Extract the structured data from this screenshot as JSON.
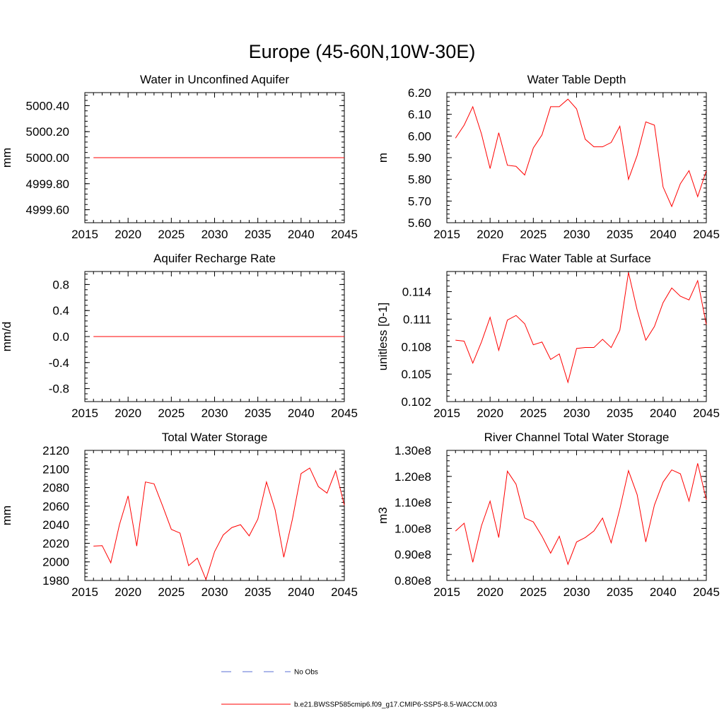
{
  "figure_title": "Europe (45-60N,10W-30E)",
  "colors": {
    "model": "#ff0000",
    "obs": "#5a6fd6",
    "axis": "#000000"
  },
  "legend": {
    "obs_label": "No Obs",
    "model_label": "b.e21.BWSSP585cmip6.f09_g17.CMIP6-SSP5-8.5-WACCM.003"
  },
  "chart_data": [
    {
      "type": "line",
      "title": "Water in Unconfined Aquifer",
      "ylabel": "mm",
      "xlim": [
        2015,
        2045
      ],
      "ylim": [
        4999.5,
        5000.5
      ],
      "xticks": [
        2015,
        2020,
        2025,
        2030,
        2035,
        2040,
        2045
      ],
      "yticks": [
        4999.6,
        4999.8,
        5000.0,
        5000.2,
        5000.4
      ],
      "ytick_labels": [
        "4999.60",
        "4999.80",
        "5000.00",
        "5000.20",
        "5000.40"
      ],
      "x": [
        2016,
        2017,
        2018,
        2019,
        2020,
        2021,
        2022,
        2023,
        2024,
        2025,
        2026,
        2027,
        2028,
        2029,
        2030,
        2031,
        2032,
        2033,
        2034,
        2035,
        2036,
        2037,
        2038,
        2039,
        2040,
        2041,
        2042,
        2043,
        2044,
        2045
      ],
      "values": [
        5000,
        5000,
        5000,
        5000,
        5000,
        5000,
        5000,
        5000,
        5000,
        5000,
        5000,
        5000,
        5000,
        5000,
        5000,
        5000,
        5000,
        5000,
        5000,
        5000,
        5000,
        5000,
        5000,
        5000,
        5000,
        5000,
        5000,
        5000,
        5000,
        5000
      ]
    },
    {
      "type": "line",
      "title": "Water Table Depth",
      "ylabel": "m",
      "xlim": [
        2015,
        2045
      ],
      "ylim": [
        5.6,
        6.2
      ],
      "xticks": [
        2015,
        2020,
        2025,
        2030,
        2035,
        2040,
        2045
      ],
      "yticks": [
        5.6,
        5.7,
        5.8,
        5.9,
        6.0,
        6.1,
        6.2
      ],
      "ytick_labels": [
        "5.60",
        "5.70",
        "5.80",
        "5.90",
        "6.00",
        "6.10",
        "6.20"
      ],
      "x": [
        2016,
        2017,
        2018,
        2019,
        2020,
        2021,
        2022,
        2023,
        2024,
        2025,
        2026,
        2027,
        2028,
        2029,
        2030,
        2031,
        2032,
        2033,
        2034,
        2035,
        2036,
        2037,
        2038,
        2039,
        2040,
        2041,
        2042,
        2043,
        2044,
        2045
      ],
      "values": [
        5.99,
        6.05,
        6.135,
        6.01,
        5.85,
        6.015,
        5.865,
        5.86,
        5.82,
        5.945,
        6.005,
        6.135,
        6.135,
        6.17,
        6.125,
        5.985,
        5.95,
        5.95,
        5.97,
        6.045,
        5.8,
        5.91,
        6.065,
        6.05,
        5.765,
        5.675,
        5.78,
        5.84,
        5.72,
        5.84
      ]
    },
    {
      "type": "line",
      "title": "Aquifer Recharge Rate",
      "ylabel": "mm/d",
      "xlim": [
        2015,
        2045
      ],
      "ylim": [
        -1.0,
        1.0
      ],
      "xticks": [
        2015,
        2020,
        2025,
        2030,
        2035,
        2040,
        2045
      ],
      "yticks": [
        -0.8,
        -0.4,
        0.0,
        0.4,
        0.8
      ],
      "ytick_labels": [
        "-0.8",
        "-0.4",
        "0.0",
        "0.4",
        "0.8"
      ],
      "x": [
        2016,
        2017,
        2018,
        2019,
        2020,
        2021,
        2022,
        2023,
        2024,
        2025,
        2026,
        2027,
        2028,
        2029,
        2030,
        2031,
        2032,
        2033,
        2034,
        2035,
        2036,
        2037,
        2038,
        2039,
        2040,
        2041,
        2042,
        2043,
        2044,
        2045
      ],
      "values": [
        0,
        0,
        0,
        0,
        0,
        0,
        0,
        0,
        0,
        0,
        0,
        0,
        0,
        0,
        0,
        0,
        0,
        0,
        0,
        0,
        0,
        0,
        0,
        0,
        0,
        0,
        0,
        0,
        0,
        0
      ]
    },
    {
      "type": "line",
      "title": "Frac Water Table at Surface",
      "ylabel": "unitless [0-1]",
      "xlim": [
        2015,
        2045
      ],
      "ylim": [
        0.102,
        0.1162
      ],
      "xticks": [
        2015,
        2020,
        2025,
        2030,
        2035,
        2040,
        2045
      ],
      "yticks": [
        0.102,
        0.105,
        0.108,
        0.111,
        0.114
      ],
      "ytick_labels": [
        "0.102",
        "0.105",
        "0.108",
        "0.111",
        "0.114"
      ],
      "x": [
        2016,
        2017,
        2018,
        2019,
        2020,
        2021,
        2022,
        2023,
        2024,
        2025,
        2026,
        2027,
        2028,
        2029,
        2030,
        2031,
        2032,
        2033,
        2034,
        2035,
        2036,
        2037,
        2038,
        2039,
        2040,
        2041,
        2042,
        2043,
        2044,
        2045
      ],
      "values": [
        0.1087,
        0.1086,
        0.1062,
        0.1085,
        0.1112,
        0.1076,
        0.1109,
        0.1114,
        0.1105,
        0.1082,
        0.1085,
        0.1066,
        0.1072,
        0.1041,
        0.1078,
        0.1079,
        0.1079,
        0.1088,
        0.1079,
        0.1098,
        0.1161,
        0.112,
        0.1087,
        0.1102,
        0.1128,
        0.1144,
        0.1135,
        0.1131,
        0.1152,
        0.1104
      ]
    },
    {
      "type": "line",
      "title": "Total Water Storage",
      "ylabel": "mm",
      "xlim": [
        2015,
        2045
      ],
      "ylim": [
        1980,
        2120
      ],
      "xticks": [
        2015,
        2020,
        2025,
        2030,
        2035,
        2040,
        2045
      ],
      "yticks": [
        1980,
        2000,
        2020,
        2040,
        2060,
        2080,
        2100,
        2120
      ],
      "ytick_labels": [
        "1980",
        "2000",
        "2020",
        "2040",
        "2060",
        "2080",
        "2100",
        "2120"
      ],
      "x": [
        2016,
        2017,
        2018,
        2019,
        2020,
        2021,
        2022,
        2023,
        2024,
        2025,
        2026,
        2027,
        2028,
        2029,
        2030,
        2031,
        2032,
        2033,
        2034,
        2035,
        2036,
        2037,
        2038,
        2039,
        2040,
        2041,
        2042,
        2043,
        2044,
        2045
      ],
      "values": [
        2017,
        2017.5,
        1999,
        2040,
        2071,
        2017,
        2086,
        2084,
        2060,
        2035,
        2031,
        1996,
        2004,
        1981,
        2011,
        2029,
        2037,
        2040,
        2028,
        2046,
        2086,
        2056,
        2005,
        2046,
        2095,
        2101,
        2081,
        2074,
        2098,
        2061
      ]
    },
    {
      "type": "line",
      "title": "River Channel Total Water Storage",
      "ylabel": "m3",
      "xlim": [
        2015,
        2045
      ],
      "ylim": [
        80000000.0,
        130000000.0
      ],
      "xticks": [
        2015,
        2020,
        2025,
        2030,
        2035,
        2040,
        2045
      ],
      "yticks": [
        80000000.0,
        90000000.0,
        100000000.0,
        110000000.0,
        120000000.0,
        130000000.0
      ],
      "ytick_labels": [
        "0.80e8",
        "0.90e8",
        "1.00e8",
        "1.10e8",
        "1.20e8",
        "1.30e8"
      ],
      "x": [
        2016,
        2017,
        2018,
        2019,
        2020,
        2021,
        2022,
        2023,
        2024,
        2025,
        2026,
        2027,
        2028,
        2029,
        2030,
        2031,
        2032,
        2033,
        2034,
        2035,
        2036,
        2037,
        2038,
        2039,
        2040,
        2041,
        2042,
        2043,
        2044,
        2045
      ],
      "values": [
        99000000.0,
        102000000.0,
        87000000.0,
        101000000.0,
        110500000.0,
        96500000.0,
        122000000.0,
        117000000.0,
        104000000.0,
        102500000.0,
        97000000.0,
        90500000.0,
        97000000.0,
        86200000.0,
        94800000.0,
        96500000.0,
        99000000.0,
        104000000.0,
        94500000.0,
        107500000.0,
        122200000.0,
        113000000.0,
        94800000.0,
        109000000.0,
        117800000.0,
        122500000.0,
        121000000.0,
        110500000.0,
        125000000.0,
        111000000.0
      ]
    }
  ]
}
